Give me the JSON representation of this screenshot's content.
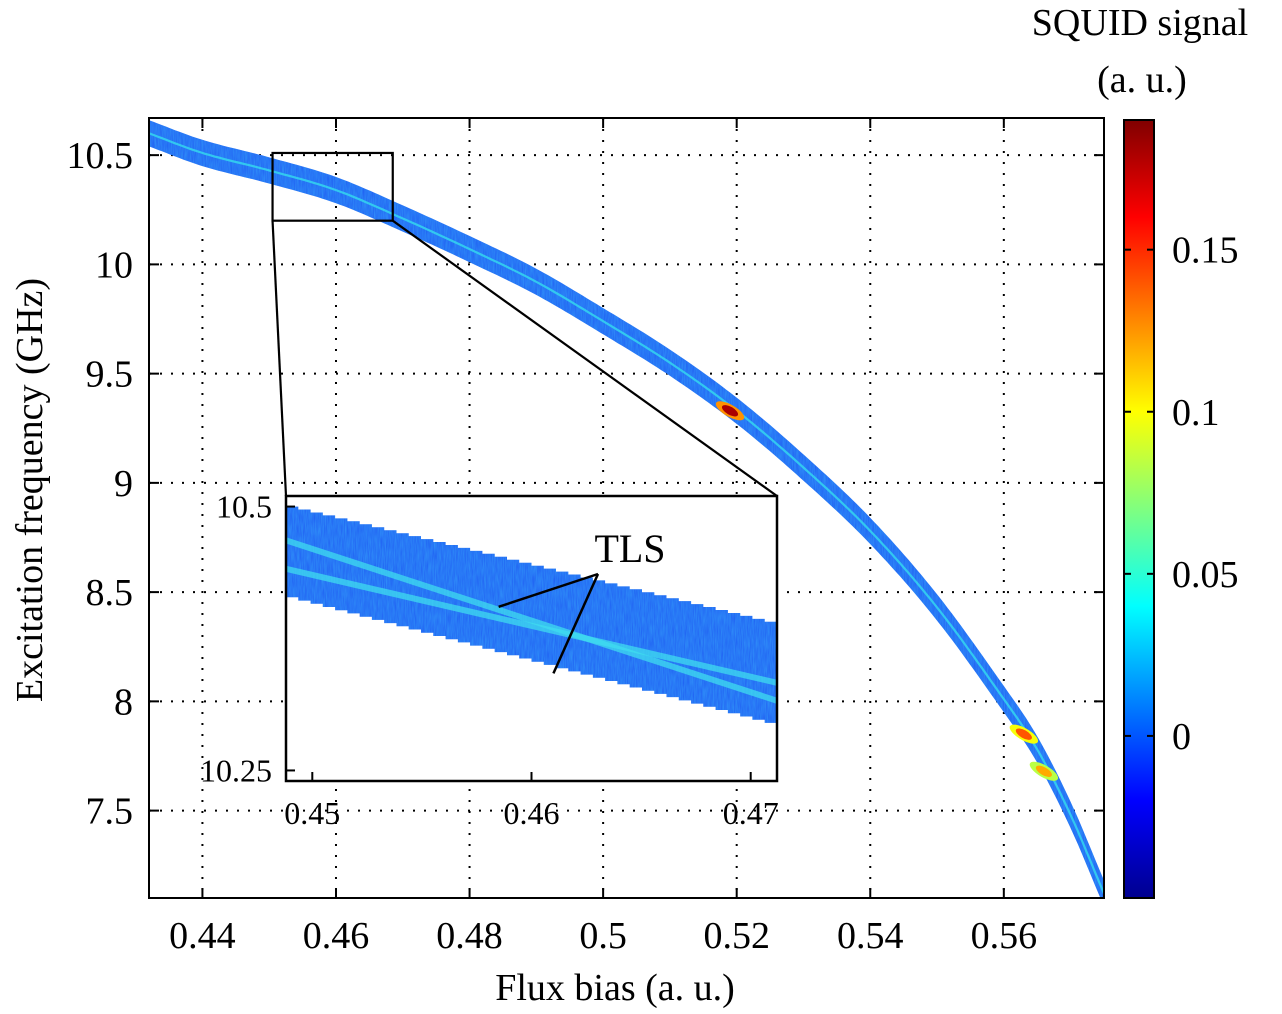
{
  "chart_data": [
    {
      "type": "heatmap",
      "title": "",
      "xlabel": "Flux bias (a. u.)",
      "ylabel": "Excitation frequency (GHz)",
      "xlim": [
        0.432,
        0.575
      ],
      "ylim": [
        7.1,
        10.67
      ],
      "xticks": [
        0.44,
        0.46,
        0.48,
        0.5,
        0.52,
        0.54,
        0.56
      ],
      "xtick_labels": [
        "0.44",
        "0.46",
        "0.48",
        "0.5",
        "0.52",
        "0.54",
        "0.56"
      ],
      "yticks": [
        7.5,
        8,
        8.5,
        9,
        9.5,
        10,
        10.5
      ],
      "ytick_labels": [
        "7.5",
        "8",
        "8.5",
        "9",
        "9.5",
        "10",
        "10.5"
      ],
      "grid": true,
      "resonance_curve": {
        "x": [
          0.432,
          0.44,
          0.45,
          0.46,
          0.47,
          0.48,
          0.49,
          0.5,
          0.51,
          0.52,
          0.53,
          0.54,
          0.55,
          0.56,
          0.565,
          0.57,
          0.575
        ],
        "y": [
          10.6,
          10.51,
          10.43,
          10.34,
          10.21,
          10.07,
          9.92,
          9.74,
          9.55,
          9.33,
          9.07,
          8.78,
          8.43,
          8.01,
          7.78,
          7.48,
          7.12
        ]
      },
      "band_half_width_ghz": 0.06,
      "highlights": [
        {
          "x": 0.519,
          "y": 9.33,
          "signal": 0.18
        },
        {
          "x": 0.563,
          "y": 7.85,
          "signal": 0.14
        },
        {
          "x": 0.566,
          "y": 7.68,
          "signal": 0.12
        }
      ],
      "zoom_box": {
        "x": [
          0.4505,
          0.4685
        ],
        "y": [
          10.2,
          10.51
        ]
      }
    },
    {
      "type": "heatmap",
      "title": "",
      "xlim": [
        0.4488,
        0.4712
      ],
      "ylim": [
        10.24,
        10.51
      ],
      "xticks": [
        0.45,
        0.46,
        0.47
      ],
      "xtick_labels": [
        "0.45",
        "0.46",
        "0.47"
      ],
      "yticks": [
        10.25,
        10.5
      ],
      "ytick_labels": [
        "10.25",
        "10.5"
      ],
      "grid": false,
      "band": {
        "x": [
          0.4488,
          0.4712
        ],
        "y_top": [
          10.5,
          10.388
        ],
        "y_bottom": [
          10.414,
          10.292
        ]
      },
      "lines": [
        {
          "x": [
            0.4488,
            0.4712
          ],
          "y": [
            10.468,
            10.316
          ]
        },
        {
          "x": [
            0.4488,
            0.4712
          ],
          "y": [
            10.441,
            10.333
          ]
        }
      ],
      "annotation": {
        "text": "TLS",
        "pointers": [
          {
            "x": 0.4585,
            "y": 10.405
          },
          {
            "x": 0.461,
            "y": 10.342
          }
        ]
      }
    }
  ],
  "colorbar": {
    "title_line1": "SQUID signal",
    "title_line2": "(a. u.)",
    "colormap": "jet",
    "range": [
      -0.05,
      0.19
    ],
    "ticks": [
      0,
      0.05,
      0.1,
      0.15
    ],
    "tick_labels": [
      "0",
      "0.05",
      "0.1",
      "0.15"
    ],
    "colors": [
      "#00008f",
      "#0000ff",
      "#00ffff",
      "#ffff00",
      "#ff0000",
      "#800000"
    ],
    "stop_values": [
      -0.05,
      -0.02,
      0.04,
      0.1,
      0.16,
      0.19
    ]
  }
}
